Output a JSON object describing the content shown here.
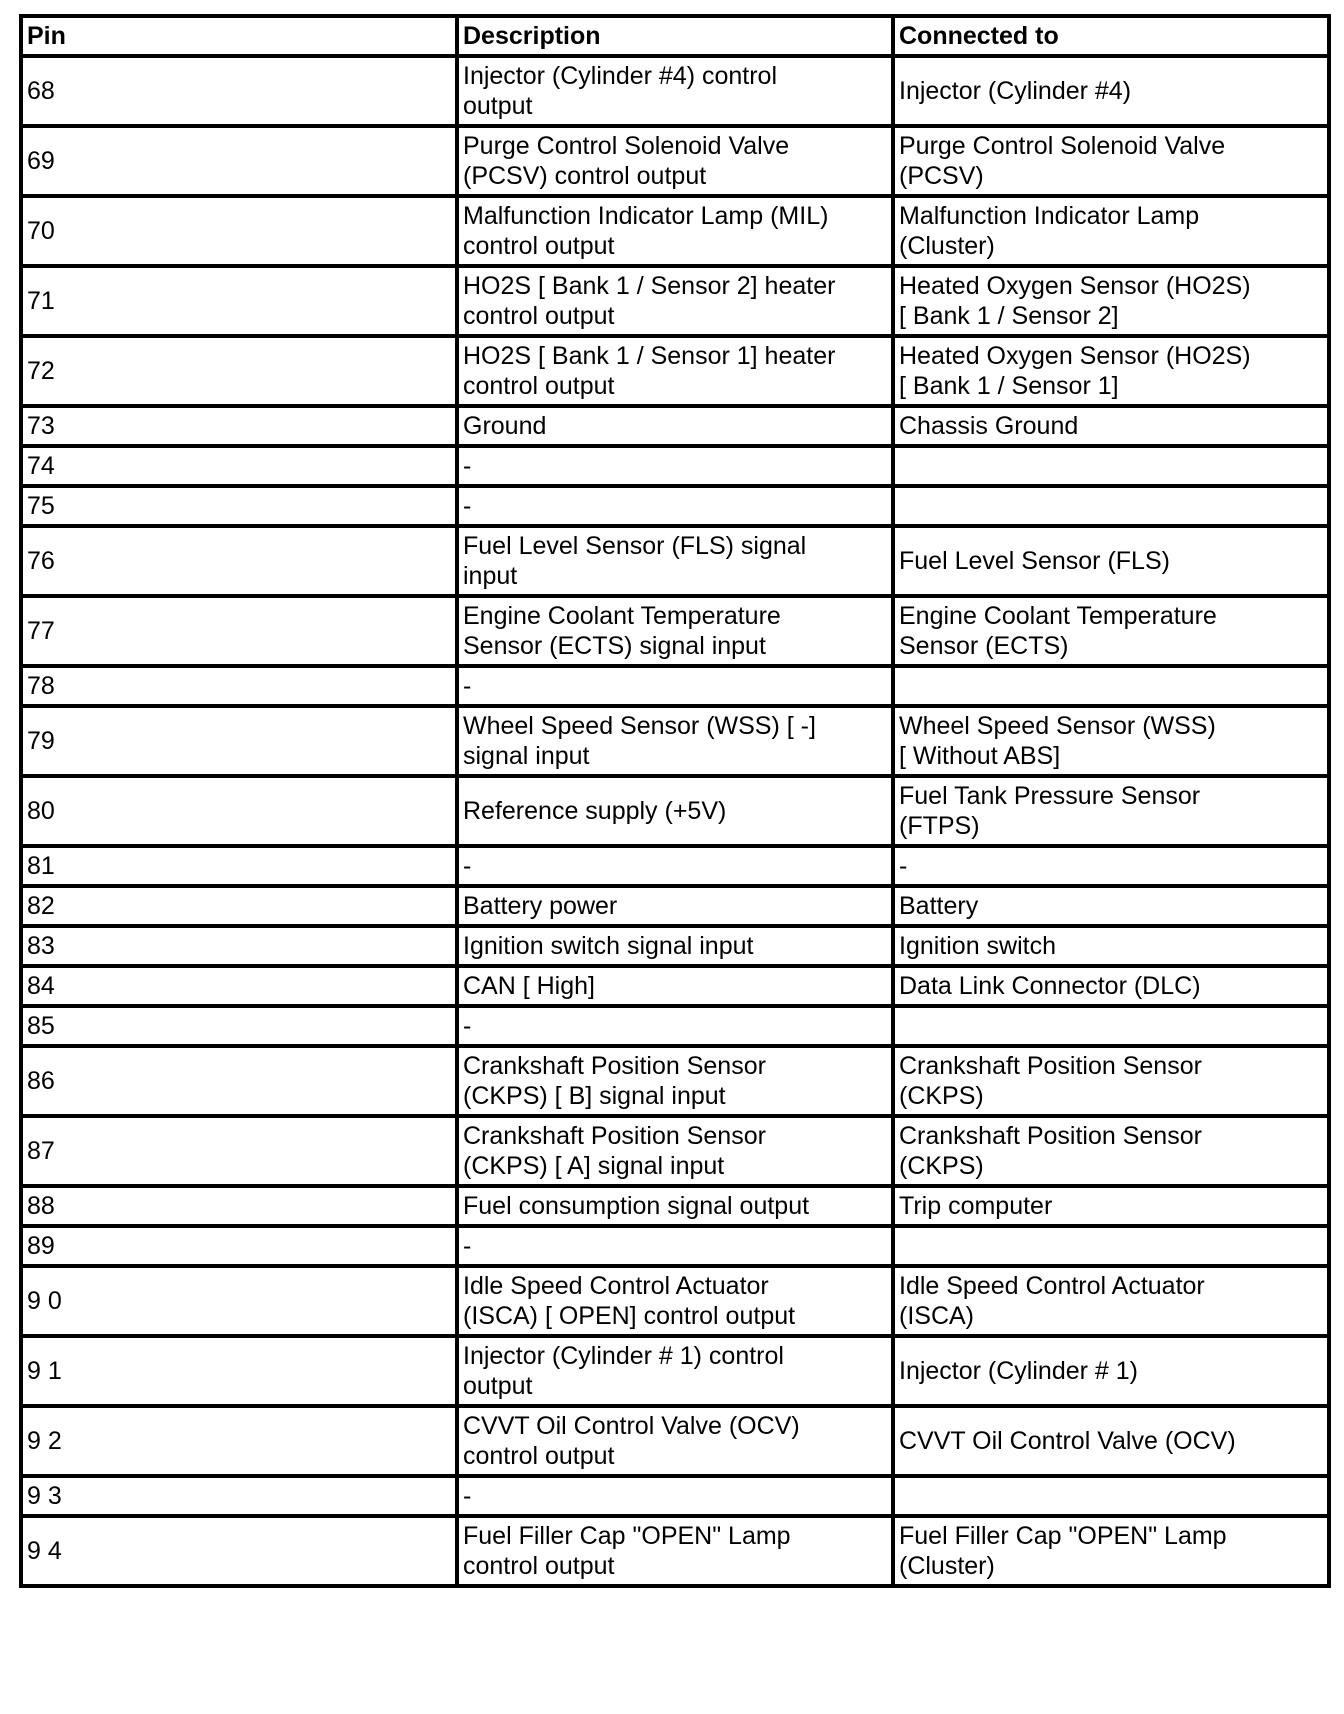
{
  "headers": [
    "Pin",
    "Description",
    "Connected to"
  ],
  "rows": [
    {
      "pin": "68",
      "description": "Injector (Cylinder #4) control\noutput",
      "connected": "Injector (Cylinder #4)"
    },
    {
      "pin": "69",
      "description": "Purge Control Solenoid Valve\n(PCSV) control output",
      "connected": "Purge Control Solenoid Valve\n(PCSV)"
    },
    {
      "pin": "70",
      "description": "Malfunction Indicator Lamp (MIL)\ncontrol output",
      "connected": "Malfunction Indicator Lamp\n(Cluster)"
    },
    {
      "pin": "71",
      "description": "HO2S [ Bank 1 / Sensor 2]   heater\ncontrol output",
      "connected": "Heated Oxygen Sensor (HO2S)\n[ Bank 1 / Sensor 2]"
    },
    {
      "pin": "72",
      "description": "HO2S [ Bank 1 / Sensor 1]   heater\ncontrol output",
      "connected": "Heated Oxygen Sensor (HO2S)\n[ Bank 1 / Sensor 1]"
    },
    {
      "pin": "73",
      "description": "Ground",
      "connected": "Chassis Ground"
    },
    {
      "pin": "74",
      "description": "-",
      "connected": ""
    },
    {
      "pin": "75",
      "description": "-",
      "connected": ""
    },
    {
      "pin": "76",
      "description": "Fuel Level Sensor (FLS) signal\ninput",
      "connected": "Fuel Level Sensor (FLS)"
    },
    {
      "pin": "77",
      "description": "Engine Coolant Temperature\nSensor (ECTS) signal input",
      "connected": "Engine Coolant Temperature\nSensor (ECTS)"
    },
    {
      "pin": "78",
      "description": "-",
      "connected": ""
    },
    {
      "pin": "79",
      "description": "Wheel Speed Sensor (WSS) [ -]\nsignal input",
      "connected": "Wheel Speed Sensor (WSS)\n[ Without ABS]"
    },
    {
      "pin": "80",
      "description": "Reference supply (+5V)",
      "connected": "Fuel Tank Pressure Sensor\n(FTPS)"
    },
    {
      "pin": "81",
      "description": "-",
      "connected": "-"
    },
    {
      "pin": "82",
      "description": "Battery power",
      "connected": "Battery"
    },
    {
      "pin": "83",
      "description": "Ignition switch signal input",
      "connected": "Ignition switch"
    },
    {
      "pin": "84",
      "description": "CAN [ High]",
      "connected": "   Data Link Connector (DLC)"
    },
    {
      "pin": "85",
      "description": "-",
      "connected": ""
    },
    {
      "pin": "86",
      "description": "Crankshaft Position Sensor\n(CKPS) [ B]   signal input",
      "connected": "Crankshaft Position Sensor\n(CKPS)"
    },
    {
      "pin": "87",
      "description": "Crankshaft Position Sensor\n(CKPS) [ A]   signal input",
      "connected": "Crankshaft Position Sensor\n(CKPS)"
    },
    {
      "pin": "88",
      "description": "Fuel consumption signal output",
      "connected": "Trip computer"
    },
    {
      "pin": "89",
      "description": " -",
      "connected": ""
    },
    {
      "pin": "9 0",
      "description": "Idle Speed Control Actuator\n(ISCA) [ OPEN]   control output",
      "connected": "Idle Speed Control Actuator\n(ISCA)"
    },
    {
      "pin": "9 1",
      "description": "Injector (Cylinder # 1) control\noutput",
      "connected": "Injector (Cylinder # 1)"
    },
    {
      "pin": "9 2",
      "description": "CVVT Oil Control Valve (OCV)\ncontrol output",
      "connected": "CVVT Oil Control Valve (OCV)"
    },
    {
      "pin": "9 3",
      "description": " -",
      "connected": ""
    },
    {
      "pin": "9 4",
      "description": "Fuel Filler Cap \"OPEN\" Lamp\ncontrol output",
      "connected": "Fuel Filler Cap \"OPEN\" Lamp\n(Cluster)"
    }
  ]
}
